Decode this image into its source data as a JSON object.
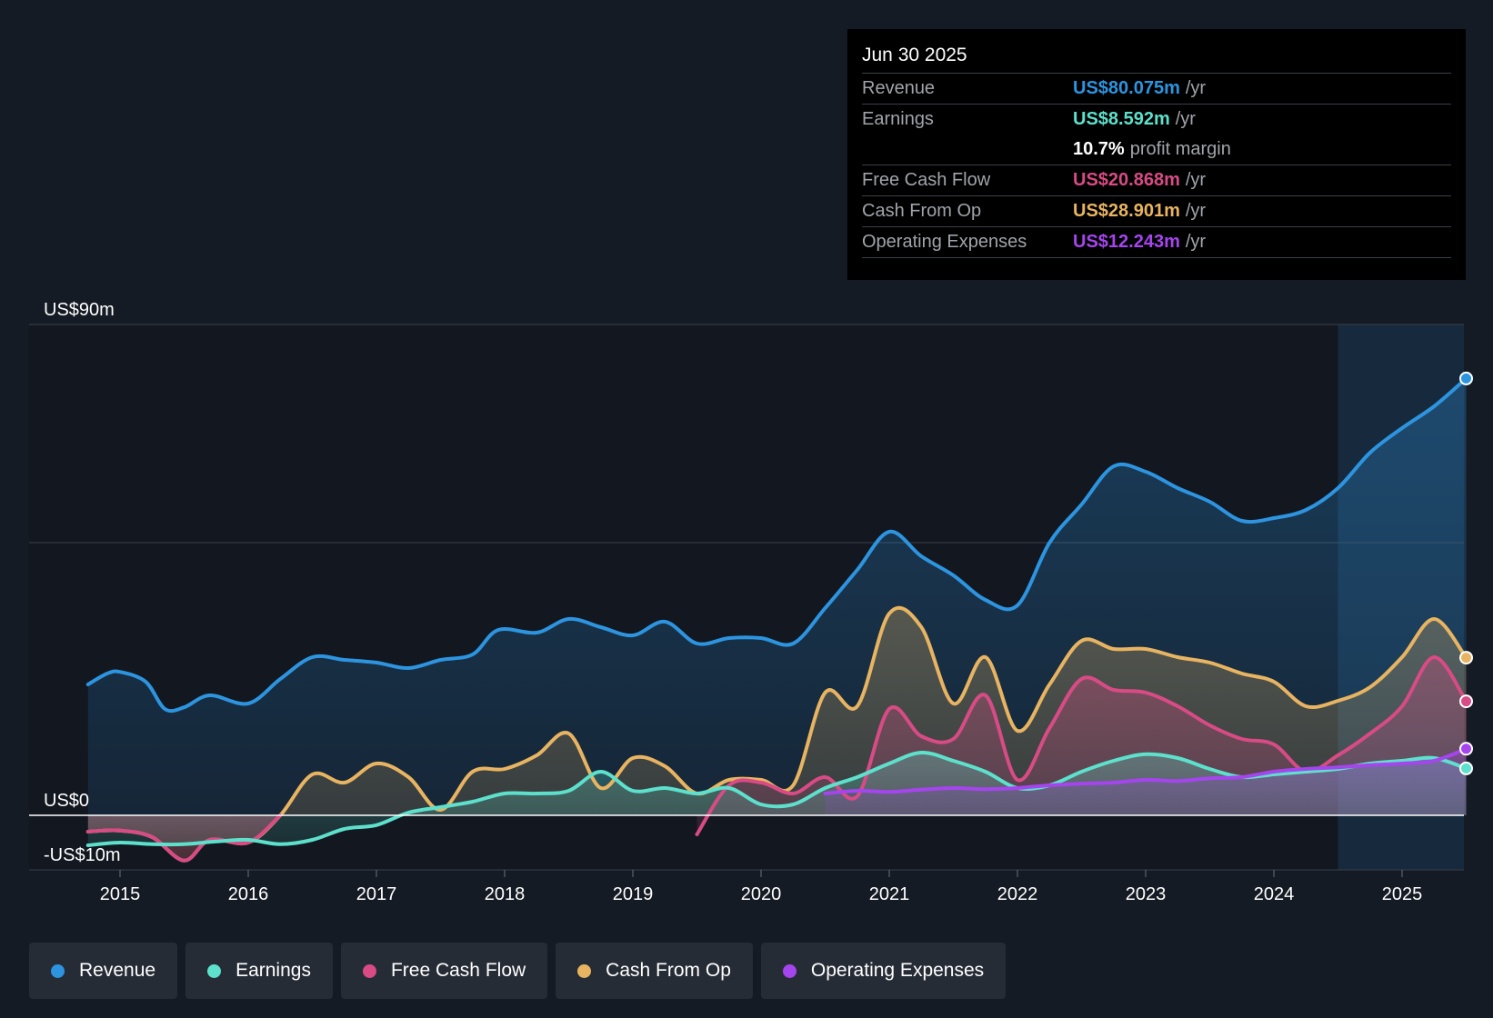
{
  "tooltip": {
    "date": "Jun 30 2025",
    "rows": [
      {
        "label": "Revenue",
        "value": "US$80.075m",
        "unit": "/yr",
        "color": "#2d94e0"
      },
      {
        "label": "Earnings",
        "value": "US$8.592m",
        "unit": "/yr",
        "color": "#5de0cc"
      },
      {
        "label": "",
        "value": "10.7%",
        "unit": "profit margin",
        "color": "#ffffff"
      },
      {
        "label": "Free Cash Flow",
        "value": "US$20.868m",
        "unit": "/yr",
        "color": "#d84b85"
      },
      {
        "label": "Cash From Op",
        "value": "US$28.901m",
        "unit": "/yr",
        "color": "#e8b461"
      },
      {
        "label": "Operating Expenses",
        "value": "US$12.243m",
        "unit": "/yr",
        "color": "#a545ee"
      }
    ]
  },
  "legend": [
    {
      "label": "Revenue",
      "color": "#2d94e0"
    },
    {
      "label": "Earnings",
      "color": "#5de0cc"
    },
    {
      "label": "Free Cash Flow",
      "color": "#d84b85"
    },
    {
      "label": "Cash From Op",
      "color": "#e8b461"
    },
    {
      "label": "Operating Expenses",
      "color": "#a545ee"
    }
  ],
  "chart_data": {
    "type": "area",
    "title": "",
    "xlabel": "",
    "ylabel": "",
    "ylim": [
      -10,
      90
    ],
    "xlim": [
      2014.75,
      2025.5
    ],
    "y_tick_labels": [
      {
        "value": 90,
        "label": "US$90m"
      },
      {
        "value": 0,
        "label": "US$0"
      },
      {
        "value": -10,
        "label": "-US$10m"
      }
    ],
    "gridlines": [
      90,
      50
    ],
    "x_ticks": [
      2015,
      2016,
      2017,
      2018,
      2019,
      2020,
      2021,
      2022,
      2023,
      2024,
      2025
    ],
    "highlight_from": 2024.5,
    "series": [
      {
        "name": "Revenue",
        "color": "#2d94e0",
        "fill": true,
        "points": [
          [
            2014.75,
            24
          ],
          [
            2014.9,
            26
          ],
          [
            2015.0,
            26.3
          ],
          [
            2015.2,
            24.5
          ],
          [
            2015.35,
            19.5
          ],
          [
            2015.5,
            19.8
          ],
          [
            2015.7,
            22
          ],
          [
            2016.0,
            20.5
          ],
          [
            2016.25,
            25
          ],
          [
            2016.5,
            29
          ],
          [
            2016.75,
            28.5
          ],
          [
            2017.0,
            28
          ],
          [
            2017.25,
            27
          ],
          [
            2017.5,
            28.5
          ],
          [
            2017.75,
            29.5
          ],
          [
            2017.95,
            34
          ],
          [
            2018.25,
            33.5
          ],
          [
            2018.5,
            36
          ],
          [
            2018.75,
            34.5
          ],
          [
            2019.0,
            33
          ],
          [
            2019.25,
            35.5
          ],
          [
            2019.5,
            31.5
          ],
          [
            2019.75,
            32.5
          ],
          [
            2020.0,
            32.5
          ],
          [
            2020.25,
            31.5
          ],
          [
            2020.5,
            38
          ],
          [
            2020.75,
            45
          ],
          [
            2021.0,
            52
          ],
          [
            2021.25,
            47.5
          ],
          [
            2021.5,
            44
          ],
          [
            2021.75,
            39.5
          ],
          [
            2022.0,
            38.5
          ],
          [
            2022.25,
            50
          ],
          [
            2022.5,
            57
          ],
          [
            2022.75,
            64
          ],
          [
            2023.0,
            63
          ],
          [
            2023.25,
            60
          ],
          [
            2023.5,
            57.5
          ],
          [
            2023.75,
            54
          ],
          [
            2024.0,
            54.5
          ],
          [
            2024.25,
            56
          ],
          [
            2024.5,
            60
          ],
          [
            2024.75,
            66.5
          ],
          [
            2025.0,
            71
          ],
          [
            2025.25,
            75
          ],
          [
            2025.5,
            80.1
          ]
        ]
      },
      {
        "name": "Cash From Op",
        "color": "#e8b461",
        "fill": true,
        "points": [
          [
            2014.75,
            -3
          ],
          [
            2015.0,
            -2.8
          ],
          [
            2015.25,
            -4
          ],
          [
            2015.5,
            -8.3
          ],
          [
            2015.7,
            -4.5
          ],
          [
            2016.0,
            -5
          ],
          [
            2016.25,
            0
          ],
          [
            2016.5,
            7.5
          ],
          [
            2016.75,
            6
          ],
          [
            2017.0,
            9.5
          ],
          [
            2017.25,
            7
          ],
          [
            2017.5,
            1
          ],
          [
            2017.75,
            8
          ],
          [
            2018.0,
            8.5
          ],
          [
            2018.25,
            11
          ],
          [
            2018.5,
            15
          ],
          [
            2018.75,
            5
          ],
          [
            2019.0,
            10.5
          ],
          [
            2019.25,
            9
          ],
          [
            2019.5,
            4
          ],
          [
            2019.75,
            6.5
          ],
          [
            2020.0,
            6.5
          ],
          [
            2020.25,
            5.5
          ],
          [
            2020.5,
            22.5
          ],
          [
            2020.75,
            20
          ],
          [
            2021.0,
            37
          ],
          [
            2021.25,
            34.5
          ],
          [
            2021.5,
            20.5
          ],
          [
            2021.75,
            29
          ],
          [
            2022.0,
            15.5
          ],
          [
            2022.25,
            24
          ],
          [
            2022.5,
            32
          ],
          [
            2022.75,
            30.5
          ],
          [
            2023.0,
            30.5
          ],
          [
            2023.25,
            29
          ],
          [
            2023.5,
            28
          ],
          [
            2023.75,
            26
          ],
          [
            2024.0,
            24.5
          ],
          [
            2024.25,
            20
          ],
          [
            2024.5,
            21
          ],
          [
            2024.75,
            23.5
          ],
          [
            2025.0,
            29
          ],
          [
            2025.25,
            36
          ],
          [
            2025.5,
            28.9
          ]
        ]
      },
      {
        "name": "Free Cash Flow",
        "color": "#d84b85",
        "fill": true,
        "segments": [
          [
            [
              2014.75,
              -3
            ],
            [
              2015.0,
              -2.8
            ],
            [
              2015.25,
              -4
            ],
            [
              2015.5,
              -8.3
            ],
            [
              2015.7,
              -4.5
            ],
            [
              2016.0,
              -5
            ],
            [
              2016.25,
              0
            ]
          ],
          [
            [
              2019.5,
              -3.5
            ],
            [
              2019.75,
              5.5
            ],
            [
              2020.0,
              6
            ],
            [
              2020.25,
              4
            ],
            [
              2020.5,
              7
            ],
            [
              2020.75,
              3.5
            ],
            [
              2021.0,
              19.5
            ],
            [
              2021.25,
              14.5
            ],
            [
              2021.5,
              14
            ],
            [
              2021.75,
              22
            ],
            [
              2022.0,
              6.5
            ],
            [
              2022.25,
              16
            ],
            [
              2022.5,
              25
            ],
            [
              2022.75,
              23
            ],
            [
              2023.0,
              22.5
            ],
            [
              2023.25,
              20
            ],
            [
              2023.5,
              16.5
            ],
            [
              2023.75,
              14
            ],
            [
              2024.0,
              13
            ],
            [
              2024.25,
              8
            ],
            [
              2024.5,
              11
            ],
            [
              2024.75,
              15
            ],
            [
              2025.0,
              20
            ],
            [
              2025.25,
              29
            ],
            [
              2025.5,
              20.9
            ]
          ]
        ]
      },
      {
        "name": "Earnings",
        "color": "#5de0cc",
        "fill": true,
        "points": [
          [
            2014.75,
            -5.5
          ],
          [
            2015.0,
            -5
          ],
          [
            2015.25,
            -5.3
          ],
          [
            2015.5,
            -5.3
          ],
          [
            2015.75,
            -4.8
          ],
          [
            2016.0,
            -4.5
          ],
          [
            2016.25,
            -5.3
          ],
          [
            2016.5,
            -4.5
          ],
          [
            2016.75,
            -2.5
          ],
          [
            2017.0,
            -1.8
          ],
          [
            2017.25,
            0.5
          ],
          [
            2017.5,
            1.5
          ],
          [
            2017.75,
            2.5
          ],
          [
            2018.0,
            4
          ],
          [
            2018.25,
            4
          ],
          [
            2018.5,
            4.5
          ],
          [
            2018.75,
            8
          ],
          [
            2019.0,
            4.5
          ],
          [
            2019.25,
            5
          ],
          [
            2019.5,
            4
          ],
          [
            2019.75,
            5
          ],
          [
            2020.0,
            2
          ],
          [
            2020.25,
            2
          ],
          [
            2020.5,
            5
          ],
          [
            2020.75,
            7
          ],
          [
            2021.0,
            9.5
          ],
          [
            2021.25,
            11.5
          ],
          [
            2021.5,
            10
          ],
          [
            2021.75,
            8
          ],
          [
            2022.0,
            5
          ],
          [
            2022.25,
            5.5
          ],
          [
            2022.5,
            8
          ],
          [
            2022.75,
            10
          ],
          [
            2023.0,
            11.2
          ],
          [
            2023.25,
            10.5
          ],
          [
            2023.5,
            8.5
          ],
          [
            2023.75,
            7
          ],
          [
            2024.0,
            7.5
          ],
          [
            2024.25,
            8
          ],
          [
            2024.5,
            8.5
          ],
          [
            2024.75,
            9.5
          ],
          [
            2025.0,
            10
          ],
          [
            2025.25,
            10.5
          ],
          [
            2025.5,
            8.6
          ]
        ]
      },
      {
        "name": "Operating Expenses",
        "color": "#a545ee",
        "fill": true,
        "points": [
          [
            2020.5,
            4
          ],
          [
            2020.75,
            4.5
          ],
          [
            2021.0,
            4.3
          ],
          [
            2021.25,
            4.7
          ],
          [
            2021.5,
            5
          ],
          [
            2021.75,
            4.8
          ],
          [
            2022.0,
            5
          ],
          [
            2022.25,
            5.5
          ],
          [
            2022.5,
            5.8
          ],
          [
            2022.75,
            6
          ],
          [
            2023.0,
            6.5
          ],
          [
            2023.25,
            6.3
          ],
          [
            2023.5,
            6.8
          ],
          [
            2023.75,
            7
          ],
          [
            2024.0,
            8
          ],
          [
            2024.25,
            8.5
          ],
          [
            2024.5,
            8.8
          ],
          [
            2024.75,
            9.2
          ],
          [
            2025.0,
            9.5
          ],
          [
            2025.25,
            10
          ],
          [
            2025.5,
            12.2
          ]
        ]
      }
    ]
  }
}
